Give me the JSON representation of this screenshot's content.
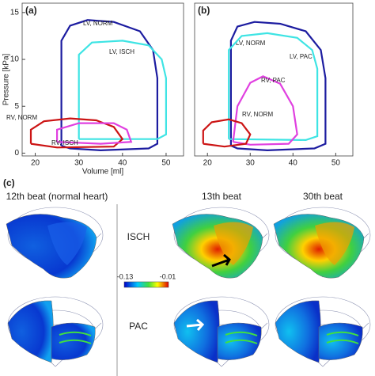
{
  "chart_data": [
    {
      "type": "line",
      "panel": "(a)",
      "xlabel": "Volume [ml]",
      "ylabel": "Pressure [kPa]",
      "xlim": [
        17,
        54
      ],
      "ylim": [
        -0.3,
        16
      ],
      "xticks": [
        20,
        30,
        40,
        50
      ],
      "yticks": [
        0,
        5,
        10,
        15
      ],
      "series": [
        {
          "name": "LV, NORM",
          "color": "#1c1ca0",
          "x": [
            26,
            26,
            28,
            32,
            38,
            44,
            47,
            48,
            48,
            46,
            35,
            28,
            26
          ],
          "values": [
            0.8,
            12,
            13.6,
            14.2,
            14,
            13,
            11,
            8,
            1,
            0.5,
            0.3,
            0.5,
            0.8
          ]
        },
        {
          "name": "LV, ISCH",
          "color": "#3ee4e4",
          "x": [
            30,
            30,
            33,
            40,
            46,
            49,
            50,
            50,
            48,
            30
          ],
          "values": [
            1.5,
            10.5,
            11.8,
            12,
            11.5,
            10,
            8,
            2,
            1.5,
            1.5
          ]
        },
        {
          "name": "RV, NORM",
          "color": "#cc1414",
          "x": [
            19,
            19,
            22,
            28,
            34,
            38,
            40,
            38,
            25,
            19
          ],
          "values": [
            1,
            2.5,
            3.4,
            3.7,
            3.5,
            2.8,
            1.5,
            0.7,
            0.6,
            1
          ]
        },
        {
          "name": "RV, ISCH",
          "color": "#e040e0",
          "x": [
            25,
            25,
            30,
            38,
            41,
            42,
            35,
            25
          ],
          "values": [
            1.2,
            2.5,
            3.2,
            3.2,
            2.5,
            1.2,
            1,
            1.2
          ]
        }
      ]
    },
    {
      "type": "line",
      "panel": "(b)",
      "xlim": [
        17,
        54
      ],
      "ylim": [
        -0.3,
        16
      ],
      "xticks": [
        20,
        30,
        40,
        50
      ],
      "series": [
        {
          "name": "LV, NORM",
          "color": "#1c1ca0",
          "x": [
            25.5,
            25.5,
            27,
            31,
            37,
            43,
            46.5,
            47.6,
            47.6,
            45,
            34,
            27,
            25.5
          ],
          "values": [
            0.8,
            12,
            13.5,
            14,
            13.8,
            13,
            11,
            8,
            1,
            0.5,
            0.3,
            0.5,
            0.8
          ]
        },
        {
          "name": "LV, PAC",
          "color": "#3ee4e4",
          "x": [
            25,
            25,
            28,
            34,
            41,
            44.5,
            45.7,
            45.7,
            43,
            25
          ],
          "values": [
            1.5,
            11,
            12.5,
            12.8,
            12.3,
            11,
            9,
            1.8,
            1.4,
            1.5
          ]
        },
        {
          "name": "RV, PAC",
          "color": "#e040e0",
          "x": [
            26,
            27,
            30,
            33,
            37,
            40,
            41,
            39,
            30,
            26
          ],
          "values": [
            1.2,
            5,
            7.5,
            8.2,
            7.4,
            5,
            2,
            1,
            0.9,
            1.2
          ]
        },
        {
          "name": "RV, NORM",
          "color": "#cc1414",
          "x": [
            19,
            19,
            21,
            25,
            28,
            30,
            29,
            24,
            19
          ],
          "values": [
            1,
            2.4,
            3.3,
            3.6,
            3.2,
            2,
            1,
            0.7,
            1
          ]
        }
      ]
    }
  ],
  "panel_c": {
    "label": "(c)",
    "columns": [
      "12th beat (normal heart)",
      "13th beat",
      "30th beat"
    ],
    "rows": [
      "ISCH",
      "PAC"
    ],
    "colorbar": [
      -0.13,
      -0.01
    ]
  }
}
